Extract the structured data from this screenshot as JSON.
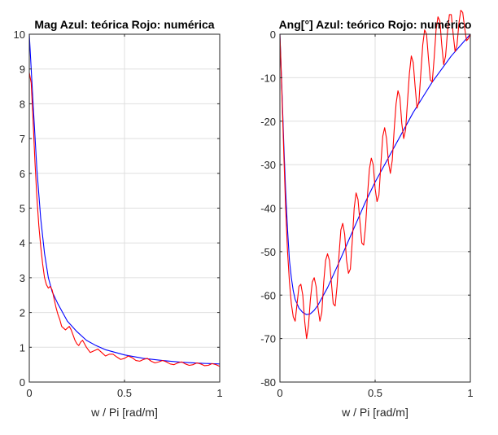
{
  "chart_data": [
    {
      "type": "line",
      "title": "Mag Azul: teórica Rojo: numérica",
      "xlabel": "w / Pi [rad/m]",
      "ylabel": "",
      "xlim": [
        0,
        1
      ],
      "ylim": [
        0,
        10
      ],
      "xticks": [
        0,
        0.5,
        1
      ],
      "xtick_labels": [
        "0",
        "0.5",
        "1"
      ],
      "yticks": [
        0,
        1,
        2,
        3,
        4,
        5,
        6,
        7,
        8,
        9,
        10
      ],
      "ytick_labels": [
        "0",
        "1",
        "2",
        "3",
        "4",
        "5",
        "6",
        "7",
        "8",
        "9",
        "10"
      ],
      "grid": true,
      "series": [
        {
          "color": "#0000ff",
          "x": [
            0,
            0.02,
            0.04,
            0.06,
            0.08,
            0.1,
            0.12,
            0.15,
            0.18,
            0.2,
            0.25,
            0.3,
            0.35,
            0.4,
            0.5,
            0.6,
            0.7,
            0.8,
            0.9,
            1.0
          ],
          "y": [
            10.0,
            8.0,
            6.1,
            4.7,
            3.7,
            3.0,
            2.6,
            2.25,
            1.95,
            1.75,
            1.45,
            1.2,
            1.05,
            0.93,
            0.78,
            0.68,
            0.62,
            0.57,
            0.54,
            0.52
          ]
        },
        {
          "color": "#ff0000",
          "x": [
            0,
            0.01,
            0.02,
            0.03,
            0.04,
            0.05,
            0.06,
            0.07,
            0.08,
            0.09,
            0.1,
            0.11,
            0.12,
            0.13,
            0.14,
            0.15,
            0.16,
            0.17,
            0.18,
            0.19,
            0.2,
            0.21,
            0.22,
            0.23,
            0.24,
            0.25,
            0.26,
            0.27,
            0.28,
            0.29,
            0.3,
            0.32,
            0.34,
            0.36,
            0.38,
            0.4,
            0.42,
            0.44,
            0.46,
            0.48,
            0.5,
            0.52,
            0.54,
            0.56,
            0.58,
            0.6,
            0.62,
            0.64,
            0.66,
            0.68,
            0.7,
            0.72,
            0.74,
            0.76,
            0.78,
            0.8,
            0.82,
            0.84,
            0.86,
            0.88,
            0.9,
            0.92,
            0.94,
            0.96,
            0.98,
            1.0
          ],
          "y": [
            8.9,
            8.6,
            7.5,
            6.3,
            5.3,
            4.5,
            3.9,
            3.4,
            3.0,
            2.8,
            2.7,
            2.75,
            2.65,
            2.4,
            2.15,
            1.95,
            1.8,
            1.6,
            1.55,
            1.5,
            1.55,
            1.6,
            1.5,
            1.35,
            1.2,
            1.1,
            1.05,
            1.15,
            1.2,
            1.1,
            1.0,
            0.85,
            0.9,
            0.95,
            0.85,
            0.75,
            0.8,
            0.8,
            0.72,
            0.65,
            0.68,
            0.75,
            0.7,
            0.62,
            0.6,
            0.65,
            0.68,
            0.6,
            0.55,
            0.58,
            0.62,
            0.58,
            0.52,
            0.5,
            0.55,
            0.58,
            0.52,
            0.48,
            0.5,
            0.55,
            0.52,
            0.47,
            0.48,
            0.53,
            0.5,
            0.45
          ]
        }
      ]
    },
    {
      "type": "line",
      "title": "Ang[°] Azul: teórico Rojo: numérico",
      "xlabel": "w / Pi [rad/m]",
      "ylabel": "",
      "xlim": [
        0,
        1
      ],
      "ylim": [
        -80,
        0
      ],
      "xticks": [
        0,
        0.5,
        1
      ],
      "xtick_labels": [
        "0",
        "0.5",
        "1"
      ],
      "yticks": [
        -80,
        -70,
        -60,
        -50,
        -40,
        -30,
        -20,
        -10,
        0
      ],
      "ytick_labels": [
        "-80",
        "-70",
        "-60",
        "-50",
        "-40",
        "-30",
        "-20",
        "-10",
        "0"
      ],
      "grid": true,
      "series": [
        {
          "color": "#0000ff",
          "x": [
            0,
            0.01,
            0.02,
            0.03,
            0.04,
            0.05,
            0.06,
            0.07,
            0.08,
            0.1,
            0.12,
            0.14,
            0.16,
            0.18,
            0.2,
            0.25,
            0.3,
            0.35,
            0.4,
            0.45,
            0.5,
            0.55,
            0.6,
            0.65,
            0.7,
            0.75,
            0.8,
            0.85,
            0.9,
            0.95,
            1.0
          ],
          "y": [
            0,
            -12,
            -25,
            -36,
            -45,
            -52,
            -56,
            -59,
            -61,
            -63,
            -64,
            -64.5,
            -64.3,
            -63.5,
            -62.3,
            -58.3,
            -53.5,
            -48.5,
            -43.5,
            -38.5,
            -34,
            -30,
            -26,
            -22,
            -18,
            -14.5,
            -11,
            -8,
            -5,
            -2.5,
            0
          ]
        },
        {
          "color": "#ff0000",
          "x": [
            0,
            0.01,
            0.02,
            0.03,
            0.04,
            0.05,
            0.06,
            0.07,
            0.08,
            0.09,
            0.1,
            0.11,
            0.12,
            0.13,
            0.14,
            0.15,
            0.16,
            0.17,
            0.18,
            0.19,
            0.2,
            0.21,
            0.22,
            0.23,
            0.24,
            0.25,
            0.26,
            0.27,
            0.28,
            0.29,
            0.3,
            0.31,
            0.32,
            0.33,
            0.34,
            0.35,
            0.36,
            0.37,
            0.38,
            0.39,
            0.4,
            0.41,
            0.42,
            0.43,
            0.44,
            0.45,
            0.46,
            0.47,
            0.48,
            0.49,
            0.5,
            0.51,
            0.52,
            0.53,
            0.54,
            0.55,
            0.56,
            0.57,
            0.58,
            0.59,
            0.6,
            0.61,
            0.62,
            0.63,
            0.64,
            0.65,
            0.66,
            0.67,
            0.68,
            0.69,
            0.7,
            0.71,
            0.72,
            0.73,
            0.74,
            0.75,
            0.76,
            0.77,
            0.78,
            0.79,
            0.8,
            0.81,
            0.82,
            0.83,
            0.84,
            0.85,
            0.86,
            0.87,
            0.88,
            0.89,
            0.9,
            0.91,
            0.92,
            0.93,
            0.94,
            0.95,
            0.96,
            0.97,
            0.98,
            0.99,
            1.0
          ],
          "y": [
            0,
            -13,
            -27,
            -40,
            -50,
            -57,
            -62,
            -65,
            -66,
            -62,
            -58,
            -57.5,
            -60,
            -66,
            -70,
            -67,
            -61,
            -57,
            -56,
            -58,
            -63,
            -66,
            -64,
            -57,
            -52,
            -50.5,
            -52,
            -57,
            -62,
            -62.5,
            -58,
            -51,
            -45,
            -43.5,
            -46,
            -52,
            -55,
            -54,
            -47.5,
            -40,
            -36.5,
            -38,
            -43,
            -48,
            -48.5,
            -44,
            -37,
            -31,
            -28.5,
            -30,
            -35.5,
            -38.5,
            -37,
            -30,
            -23.5,
            -21.5,
            -24,
            -29.5,
            -32,
            -29,
            -22,
            -16,
            -13,
            -14.5,
            -20.5,
            -24,
            -22,
            -15.5,
            -9,
            -5,
            -6.5,
            -12,
            -17,
            -15.5,
            -9,
            -2.5,
            1,
            0,
            -5.5,
            -10.5,
            -11,
            -5.5,
            1,
            4,
            3,
            -2.5,
            -7,
            -5,
            0.5,
            4.5,
            4.5,
            0,
            -4,
            -2.5,
            2.5,
            5.5,
            5,
            1.5,
            -1.5,
            -1,
            0
          ]
        }
      ]
    }
  ]
}
